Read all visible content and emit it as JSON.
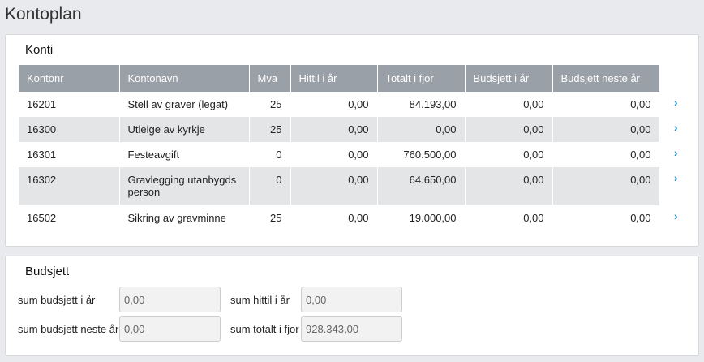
{
  "title": "Kontoplan",
  "konti": {
    "title": "Konti",
    "columns": [
      "Kontonr",
      "Kontonavn",
      "Mva",
      "Hittil i år",
      "Totalt i fjor",
      "Budsjett i år",
      "Budsjett neste år"
    ],
    "rows": [
      [
        "16201",
        "Stell av graver (legat)",
        "25",
        "0,00",
        "84.193,00",
        "0,00",
        "0,00"
      ],
      [
        "16300",
        "Utleige av kyrkje",
        "25",
        "0,00",
        "0,00",
        "0,00",
        "0,00"
      ],
      [
        "16301",
        "Festeavgift",
        "0",
        "0,00",
        "760.500,00",
        "0,00",
        "0,00"
      ],
      [
        "16302",
        "Gravlegging utanbygds person",
        "0",
        "0,00",
        "64.650,00",
        "0,00",
        "0,00"
      ],
      [
        "16502",
        "Sikring av gravminne",
        "25",
        "0,00",
        "19.000,00",
        "0,00",
        "0,00"
      ]
    ],
    "chevron": "›"
  },
  "budsjett": {
    "title": "Budsjett",
    "sum_budsjett_i_aar_label": "sum budsjett i år",
    "sum_budsjett_i_aar": "0,00",
    "sum_hittil_label": "sum hittil i år",
    "sum_hittil": "0,00",
    "sum_budsjett_neste_label": "sum budsjett neste år",
    "sum_budsjett_neste": "0,00",
    "sum_totalt_fjor_label": "sum totalt i fjor",
    "sum_totalt_fjor": "928.343,00"
  }
}
